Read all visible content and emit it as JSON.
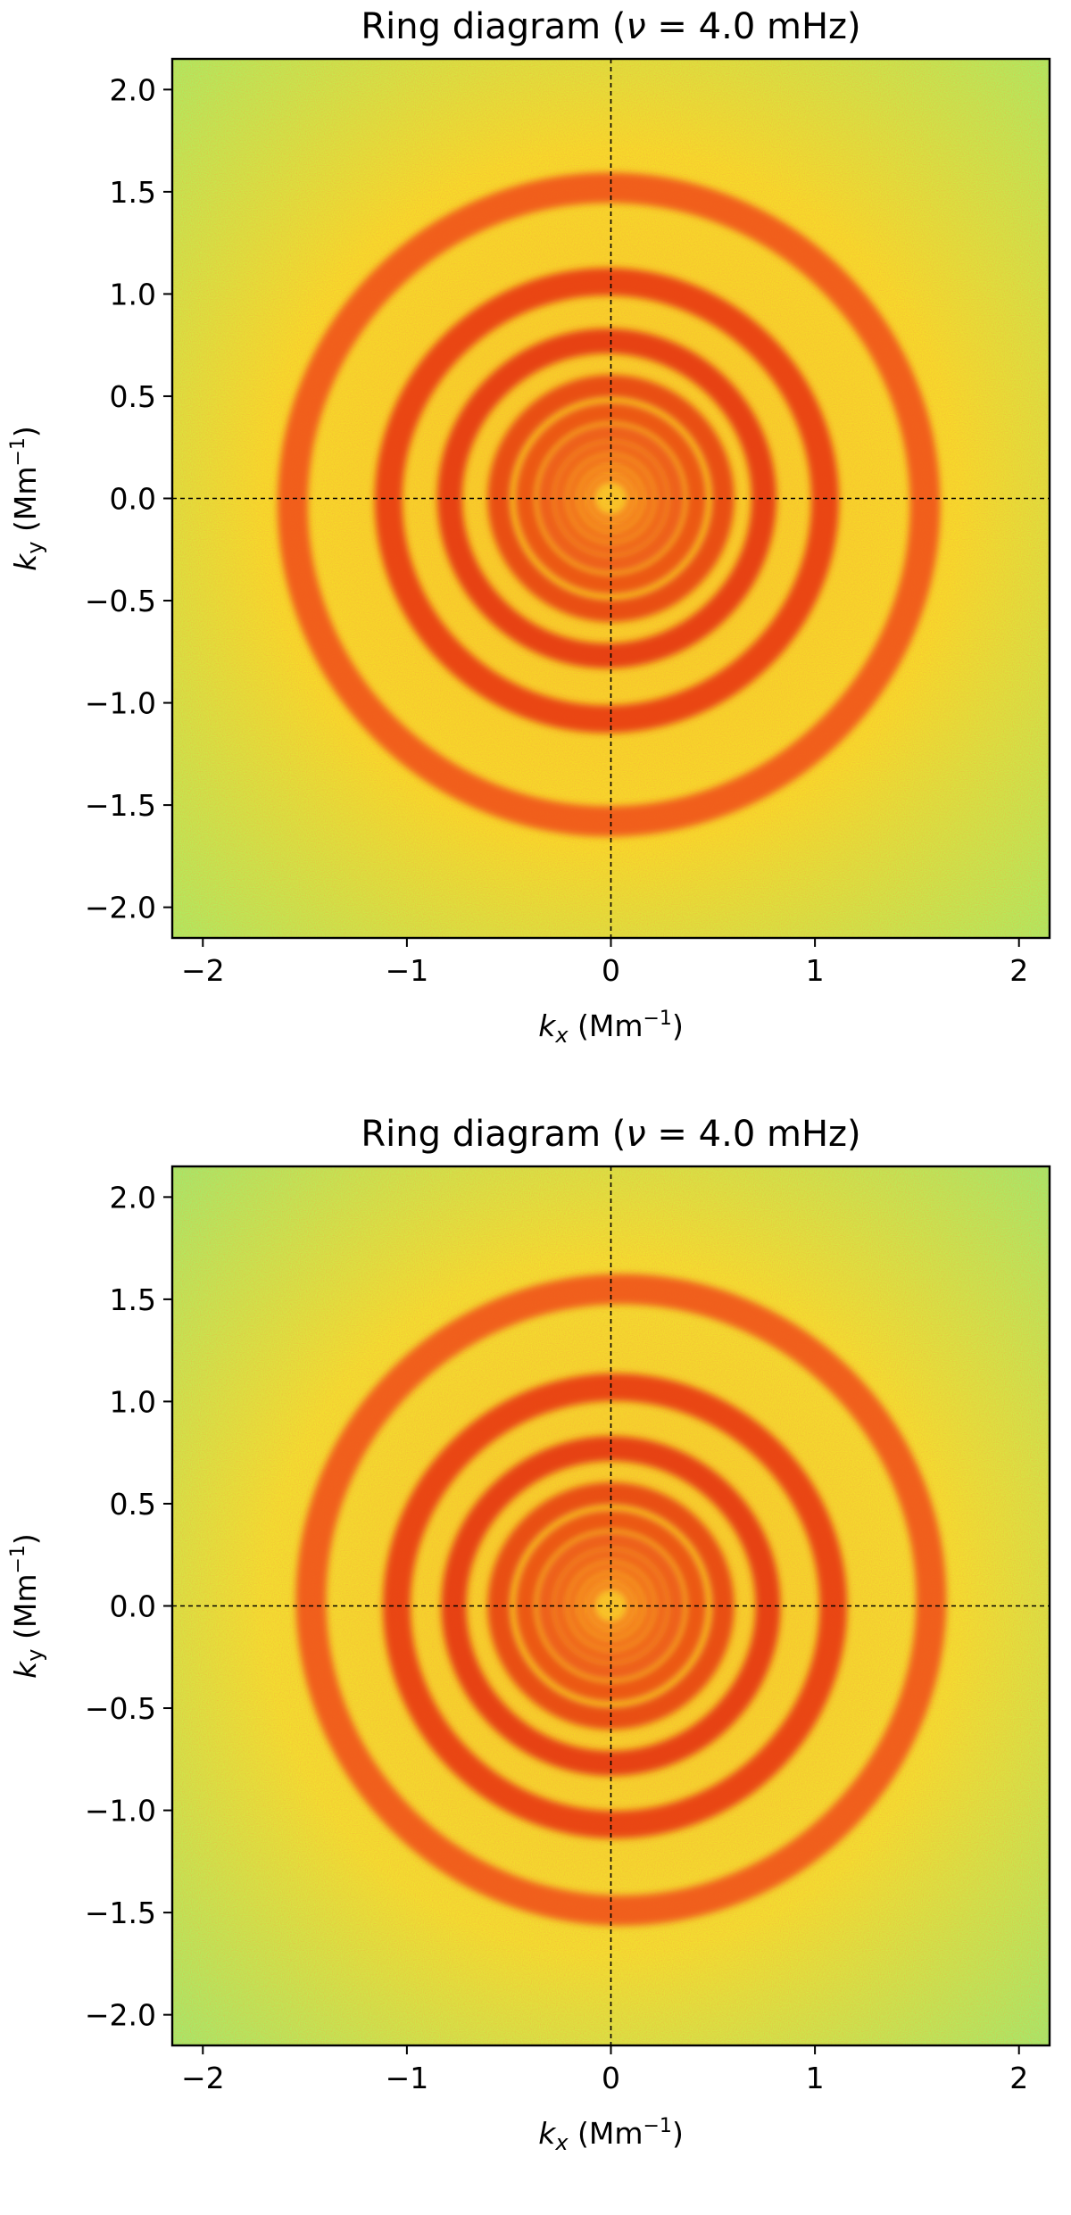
{
  "chart_data": [
    {
      "type": "heatmap",
      "title": "Ring diagram (ν = 4.0 mHz)",
      "title_parts": {
        "prefix": "Ring diagram (",
        "symbol": "ν",
        "suffix": " = 4.0 mHz)"
      },
      "xlabel": {
        "base": "k",
        "sub": "x",
        "unit_pre": " (Mm",
        "unit_sup": "−1",
        "unit_post": ")"
      },
      "ylabel": {
        "base": "k",
        "sub": "y",
        "unit_pre": " (Mm",
        "unit_sup": "−1",
        "unit_post": ")"
      },
      "xlim": [
        -2.15,
        2.15
      ],
      "ylim": [
        -2.15,
        2.15
      ],
      "xticks": [
        -2,
        -1,
        0,
        1,
        2
      ],
      "xtick_labels": [
        "−2",
        "−1",
        "0",
        "1",
        "2"
      ],
      "yticks": [
        2.0,
        1.5,
        1.0,
        0.5,
        0.0,
        -0.5,
        -1.0,
        -1.5,
        -2.0
      ],
      "ytick_labels": [
        "2.0",
        "1.5",
        "1.0",
        "0.5",
        "0.0",
        "−0.5",
        "−1.0",
        "−1.5",
        "−2.0"
      ],
      "reference_lines": {
        "x": 0,
        "y": 0,
        "style": "dashed"
      },
      "colormap": "jet",
      "ring_radii": [
        1.55,
        1.07,
        0.77,
        0.55,
        0.42,
        0.32,
        0.25,
        0.19,
        0.14,
        0.1
      ],
      "ring_centers": [
        [
          -0.01,
          -0.03
        ],
        [
          -0.02,
          -0.01
        ],
        [
          -0.02,
          0.0
        ],
        [
          0.0,
          0.0
        ],
        [
          0.0,
          0.0
        ],
        [
          0.0,
          0.0
        ],
        [
          0.0,
          0.0
        ],
        [
          0.0,
          0.0
        ],
        [
          0.0,
          0.0
        ],
        [
          0.0,
          0.0
        ]
      ],
      "ring_colors": [
        "#f04a15",
        "#e8300f",
        "#e42c0d",
        "#e63a10",
        "#ea4512",
        "#ec4f14",
        "#ee5a16",
        "#f06418",
        "#f26e1a",
        "#f4781c"
      ],
      "colors": {
        "background": "#f6dc2a",
        "inner": "#f8c826",
        "corner": "#a6ee66"
      }
    },
    {
      "type": "heatmap",
      "title": "Ring diagram (ν = 4.0 mHz)",
      "title_parts": {
        "prefix": "Ring diagram (",
        "symbol": "ν",
        "suffix": " = 4.0 mHz)"
      },
      "xlabel": {
        "base": "k",
        "sub": "x",
        "unit_pre": " (Mm",
        "unit_sup": "−1",
        "unit_post": ")"
      },
      "ylabel": {
        "base": "k",
        "sub": "y",
        "unit_pre": " (Mm",
        "unit_sup": "−1",
        "unit_post": ")"
      },
      "xlim": [
        -2.15,
        2.15
      ],
      "ylim": [
        -2.15,
        2.15
      ],
      "xticks": [
        -2,
        -1,
        0,
        1,
        2
      ],
      "xtick_labels": [
        "−2",
        "−1",
        "0",
        "1",
        "2"
      ],
      "yticks": [
        2.0,
        1.5,
        1.0,
        0.5,
        0.0,
        -0.5,
        -1.0,
        -1.5,
        -2.0
      ],
      "ytick_labels": [
        "2.0",
        "1.5",
        "1.0",
        "0.5",
        "0.0",
        "−0.5",
        "−1.0",
        "−1.5",
        "−2.0"
      ],
      "reference_lines": {
        "x": 0,
        "y": 0,
        "style": "dashed"
      },
      "colormap": "jet",
      "ring_radii": [
        1.52,
        1.07,
        0.77,
        0.55,
        0.42,
        0.32,
        0.25,
        0.19,
        0.14,
        0.1
      ],
      "ring_centers": [
        [
          0.05,
          0.03
        ],
        [
          0.02,
          0.0
        ],
        [
          0.0,
          0.0
        ],
        [
          0.0,
          0.0
        ],
        [
          0.0,
          0.0
        ],
        [
          0.0,
          0.0
        ],
        [
          0.0,
          0.0
        ],
        [
          0.0,
          0.0
        ],
        [
          0.0,
          0.0
        ],
        [
          0.0,
          0.0
        ]
      ],
      "ring_colors": [
        "#f04a15",
        "#e8300f",
        "#e42c0d",
        "#e63a10",
        "#ea4512",
        "#ec4f14",
        "#ee5a16",
        "#f06418",
        "#f26e1a",
        "#f4781c"
      ],
      "colors": {
        "background": "#f2e030",
        "inner": "#f8c826",
        "corner": "#9cec70"
      }
    }
  ]
}
